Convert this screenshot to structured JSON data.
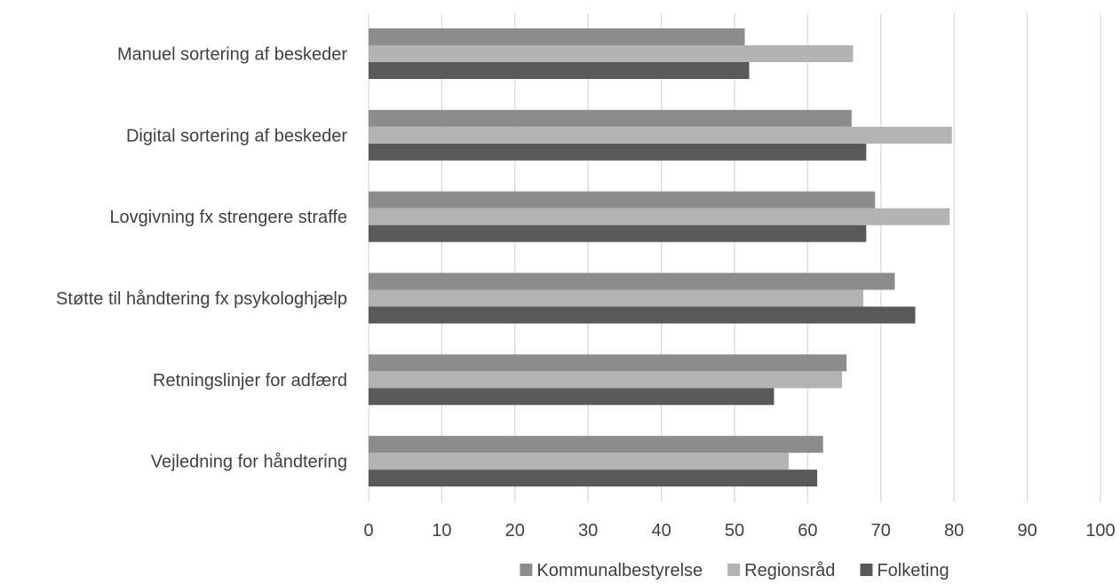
{
  "chart_data": {
    "type": "bar",
    "orientation": "horizontal",
    "title": "",
    "xlabel": "",
    "ylabel": "",
    "xlim": [
      0,
      100
    ],
    "xticks": [
      0,
      10,
      20,
      30,
      40,
      50,
      60,
      70,
      80,
      90,
      100
    ],
    "grid": true,
    "legend_position": "bottom",
    "categories": [
      "Manuel sortering af beskeder",
      "Digital sortering af beskeder",
      "Lovgivning fx strengere straffe",
      "Støtte til håndtering fx psykologhjælp",
      "Retningslinjer for adfærd",
      "Vejledning for håndtering"
    ],
    "series": [
      {
        "name": "Kommunalbestyrelse",
        "color": "#8c8c8c",
        "values": [
          51.4,
          66.0,
          69.2,
          71.9,
          65.3,
          62.1
        ]
      },
      {
        "name": "Regionsråd",
        "color": "#b3b3b3",
        "values": [
          66.2,
          79.7,
          79.4,
          67.6,
          64.7,
          57.4
        ]
      },
      {
        "name": "Folketing",
        "color": "#595959",
        "values": [
          52.0,
          68.0,
          68.0,
          74.7,
          55.4,
          61.3
        ]
      }
    ]
  }
}
